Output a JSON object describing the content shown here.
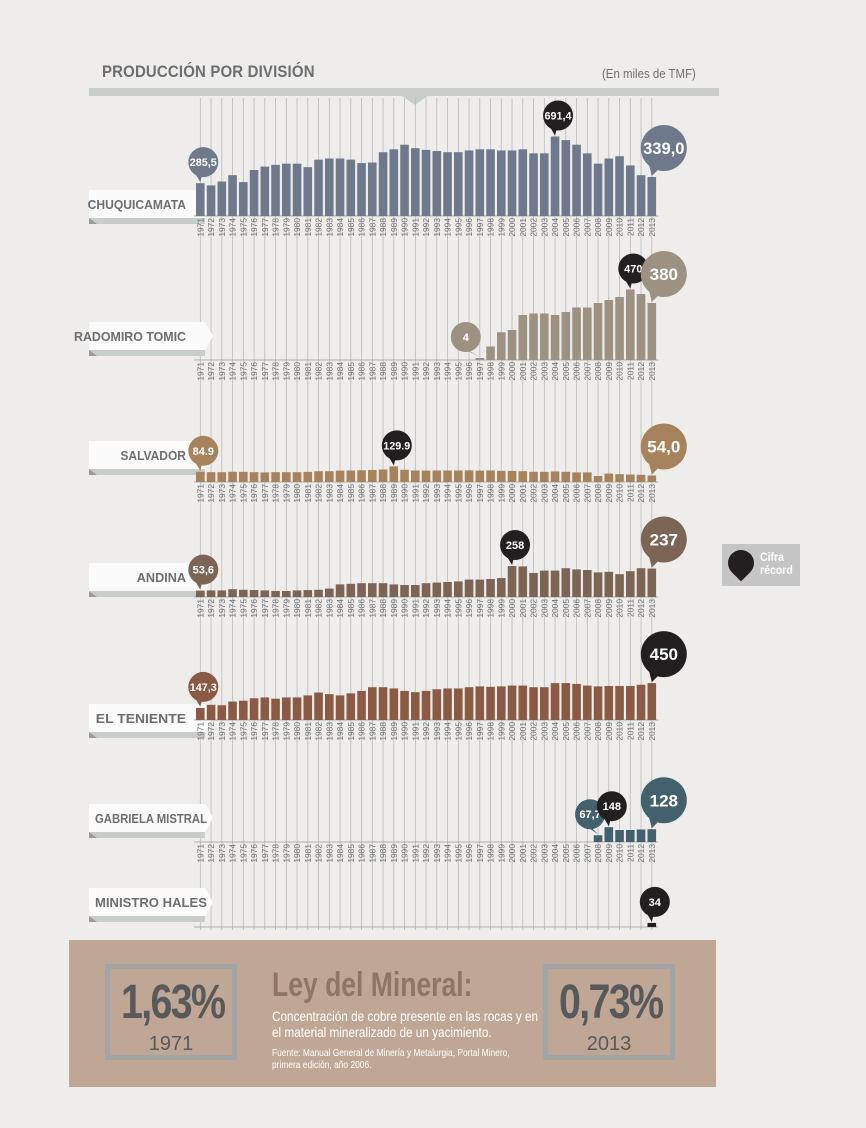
{
  "header": {
    "title": "PRODUCCIÓN POR DIVISIÓN",
    "units": "(En miles de TMF)"
  },
  "legend": {
    "label_line1": "Cifra",
    "label_line2": "récord",
    "marker_color": "#231f20"
  },
  "colors": {
    "record": "#231f20",
    "panel_bg": "#c0a795",
    "grid": "#b9b9b9"
  },
  "chart_data": {
    "type": "bar",
    "x": [
      1971,
      1972,
      1973,
      1974,
      1975,
      1976,
      1977,
      1978,
      1979,
      1980,
      1981,
      1982,
      1983,
      1984,
      1985,
      1986,
      1987,
      1988,
      1989,
      1990,
      1991,
      1992,
      1993,
      1994,
      1995,
      1996,
      1997,
      1998,
      1999,
      2000,
      2001,
      2002,
      2003,
      2004,
      2005,
      2006,
      2007,
      2008,
      2009,
      2010,
      2011,
      2012,
      2013
    ],
    "series": [
      {
        "name": "CHUQUICAMATA",
        "color": "#6e7a8b",
        "callout_color": "#6e7a8b",
        "values": [
          285.5,
          266,
          300,
          355,
          295,
          400,
          430,
          445,
          455,
          455,
          425,
          490,
          500,
          500,
          490,
          460,
          465,
          555,
          580,
          620,
          590,
          575,
          565,
          555,
          555,
          570,
          580,
          580,
          570,
          570,
          580,
          545,
          545,
          691.4,
          660,
          620,
          545,
          455,
          500,
          520,
          440,
          355,
          339.0
        ],
        "labels": [
          {
            "x": 1971,
            "text": "285,5",
            "style": "start"
          },
          {
            "x": 2004,
            "text": "691,4",
            "style": "record"
          },
          {
            "x": 2013,
            "text": "339,0",
            "style": "end"
          }
        ]
      },
      {
        "name": "RADOMIRO TOMIC",
        "color": "#9d9182",
        "callout_color": "#9d9182",
        "values": [
          null,
          null,
          null,
          null,
          null,
          null,
          null,
          null,
          null,
          null,
          null,
          null,
          null,
          null,
          null,
          null,
          null,
          null,
          null,
          null,
          null,
          null,
          null,
          null,
          null,
          null,
          4,
          90,
          185,
          200,
          300,
          310,
          310,
          300,
          320,
          350,
          350,
          380,
          400,
          420,
          470,
          440,
          380
        ],
        "labels": [
          {
            "x": 1997,
            "text": "4",
            "style": "start"
          },
          {
            "x": 2011,
            "text": "470",
            "style": "record"
          },
          {
            "x": 2013,
            "text": "380",
            "style": "end"
          }
        ]
      },
      {
        "name": "SALVADOR",
        "color": "#a7835d",
        "callout_color": "#a7835d",
        "values": [
          84.9,
          82,
          82,
          85,
          85,
          82,
          80,
          82,
          82,
          82,
          84,
          90,
          90,
          95,
          96,
          98,
          100,
          104,
          129.9,
          102,
          96,
          95,
          96,
          96,
          96,
          97,
          95,
          96,
          93,
          92,
          90,
          85,
          85,
          88,
          85,
          80,
          80,
          50,
          70,
          65,
          62,
          60,
          54.0
        ],
        "labels": [
          {
            "x": 1971,
            "text": "84.9",
            "style": "start"
          },
          {
            "x": 1989,
            "text": "129.9",
            "style": "record"
          },
          {
            "x": 2013,
            "text": "54,0",
            "style": "end"
          }
        ]
      },
      {
        "name": "ANDINA",
        "color": "#7c6555",
        "callout_color": "#7c6555",
        "values": [
          53.6,
          55,
          55,
          65,
          60,
          58,
          55,
          50,
          50,
          55,
          58,
          60,
          70,
          105,
          110,
          115,
          115,
          115,
          105,
          100,
          100,
          115,
          120,
          125,
          130,
          145,
          145,
          150,
          158,
          258,
          255,
          200,
          220,
          220,
          240,
          230,
          225,
          205,
          210,
          190,
          215,
          240,
          237
        ],
        "labels": [
          {
            "x": 1971,
            "text": "53,6",
            "style": "start"
          },
          {
            "x": 2000,
            "text": "258",
            "style": "record"
          },
          {
            "x": 2013,
            "text": "237",
            "style": "end"
          }
        ]
      },
      {
        "name": "EL TENIENTE",
        "color": "#8a5a45",
        "callout_color": "#8a5a45",
        "values": [
          147.3,
          185,
          180,
          225,
          235,
          265,
          275,
          260,
          275,
          275,
          300,
          335,
          315,
          300,
          325,
          355,
          400,
          400,
          385,
          355,
          340,
          355,
          375,
          385,
          385,
          400,
          410,
          405,
          410,
          420,
          420,
          400,
          400,
          450,
          450,
          440,
          420,
          410,
          415,
          415,
          415,
          430,
          450
        ],
        "labels": [
          {
            "x": 1971,
            "text": "147,3",
            "style": "start"
          },
          {
            "x": 2013,
            "text": "450",
            "style": "record"
          }
        ]
      },
      {
        "name": "GABRIELA MISTRAL",
        "color": "#43606d",
        "callout_color": "#43606d",
        "values": [
          null,
          null,
          null,
          null,
          null,
          null,
          null,
          null,
          null,
          null,
          null,
          null,
          null,
          null,
          null,
          null,
          null,
          null,
          null,
          null,
          null,
          null,
          null,
          null,
          null,
          null,
          null,
          null,
          null,
          null,
          null,
          null,
          null,
          null,
          null,
          null,
          null,
          67.7,
          148,
          120,
          120,
          125,
          128
        ],
        "labels": [
          {
            "x": 2008,
            "text": "67,7",
            "style": "start"
          },
          {
            "x": 2009,
            "text": "148",
            "style": "record"
          },
          {
            "x": 2013,
            "text": "128",
            "style": "end"
          }
        ]
      },
      {
        "name": "MINISTRO HALES",
        "color": "#231f20",
        "callout_color": "#231f20",
        "values": [
          null,
          null,
          null,
          null,
          null,
          null,
          null,
          null,
          null,
          null,
          null,
          null,
          null,
          null,
          null,
          null,
          null,
          null,
          null,
          null,
          null,
          null,
          null,
          null,
          null,
          null,
          null,
          null,
          null,
          null,
          null,
          null,
          null,
          null,
          null,
          null,
          null,
          null,
          null,
          null,
          null,
          null,
          34
        ],
        "labels": [
          {
            "x": 2013,
            "text": "34",
            "style": "record"
          }
        ]
      }
    ]
  },
  "footer": {
    "grade_1971_value": "1,63%",
    "grade_1971_year": "1971",
    "title": "Ley del Mineral:",
    "description": "Concentración de cobre presente en las rocas y en el material mineralizado de un yacimiento.",
    "source": "Fuente: Manual General de Minería y Metalurgia, Portal Minero, primera edición, año 2006.",
    "grade_2013_value": "0,73%",
    "grade_2013_year": "2013"
  }
}
